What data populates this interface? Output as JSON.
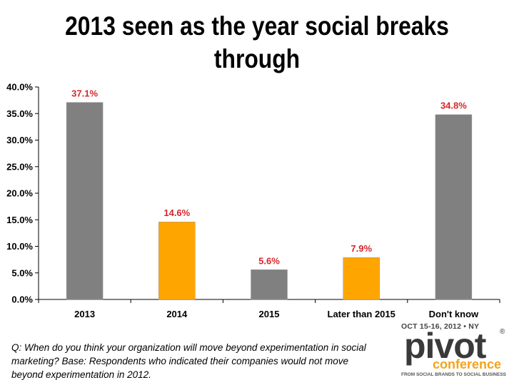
{
  "title": "2013 seen as the year social breaks through",
  "note": "Q: When do you think your organization will move beyond experimentation in social marketing? Base: Respondents who indicated their companies would not move beyond experimentation in 2012.",
  "logo": {
    "dates": "OCT 15-16, 2012 • NY",
    "word": "pivot",
    "registered": "®",
    "sub": "conference",
    "tagline": "FROM SOCIAL BRANDS TO SOCIAL BUSINESS"
  },
  "chart_data": {
    "type": "bar",
    "title": "2013 seen as the year social breaks through",
    "xlabel": "",
    "ylabel": "",
    "categories": [
      "2013",
      "2014",
      "2015",
      "Later than 2015",
      "Don't know"
    ],
    "values": [
      37.1,
      14.6,
      5.6,
      7.9,
      34.8
    ],
    "value_labels": [
      "37.1%",
      "14.6%",
      "5.6%",
      "7.9%",
      "34.8%"
    ],
    "bar_colors": [
      "#808080",
      "#ffa500",
      "#808080",
      "#ffa500",
      "#808080"
    ],
    "label_color": "#d6262b",
    "ylim": [
      0,
      40
    ],
    "yticks": [
      0,
      5,
      10,
      15,
      20,
      25,
      30,
      35,
      40
    ],
    "ytick_labels": [
      "0.0%",
      "5.0%",
      "10.0%",
      "15.0%",
      "20.0%",
      "25.0%",
      "30.0%",
      "35.0%",
      "40.0%"
    ],
    "grid": false,
    "legend": "none"
  }
}
